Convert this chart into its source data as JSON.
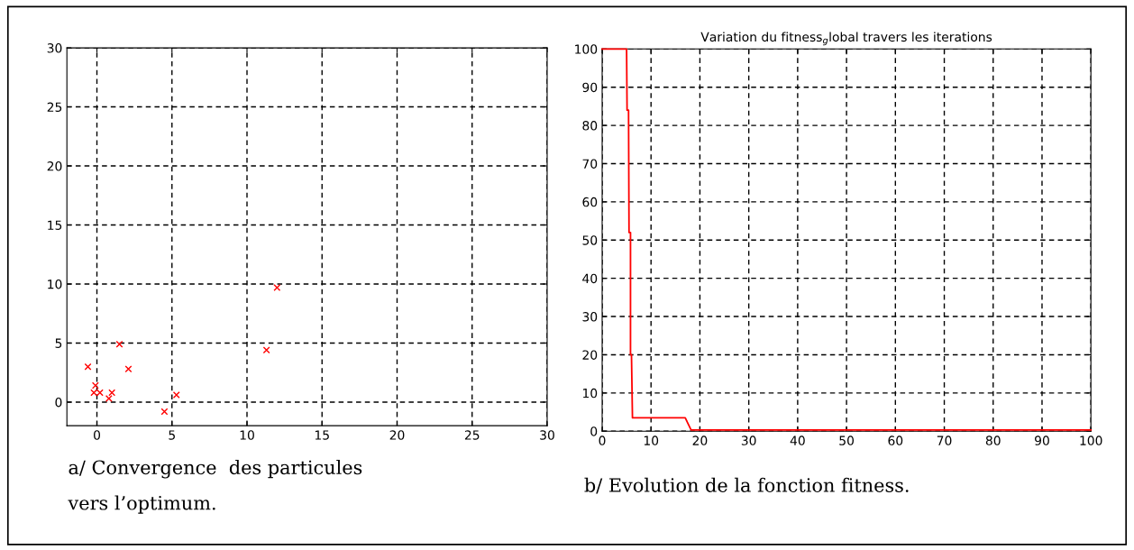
{
  "chart_data": [
    {
      "type": "scatter",
      "marker": "cross",
      "grid": true,
      "xlim": [
        -2,
        30
      ],
      "ylim": [
        -2,
        30
      ],
      "xticks": [
        0,
        5,
        10,
        15,
        20,
        25,
        30
      ],
      "yticks": [
        0,
        5,
        10,
        15,
        20,
        25,
        30
      ],
      "annotations": [
        "a/ Convergence  des particules\nvers l’optimum."
      ],
      "series": [
        {
          "color": "#ff0000",
          "x": [
            -0.6,
            -0.1,
            -0.2,
            0.2,
            0.8,
            1.0,
            1.5,
            2.1,
            4.5,
            5.3,
            11.3,
            12.0
          ],
          "values": [
            3.0,
            1.4,
            0.8,
            0.8,
            0.3,
            0.8,
            4.9,
            2.8,
            -0.8,
            0.6,
            4.4,
            9.7
          ]
        }
      ]
    },
    {
      "type": "line",
      "title": "Variation du fitness$_{g}$lobal travers les iterations",
      "grid": true,
      "line_style": "solid",
      "xlim": [
        0,
        100
      ],
      "ylim": [
        0,
        100
      ],
      "xticks": [
        0,
        10,
        20,
        30,
        40,
        50,
        60,
        70,
        80,
        90,
        100
      ],
      "yticks": [
        0,
        10,
        20,
        30,
        40,
        50,
        60,
        70,
        80,
        90,
        100
      ],
      "annotations": [
        "b/ Evolution de la fonction fitness."
      ],
      "series": [
        {
          "color": "#ff0000",
          "x": [
            0,
            5,
            5.1,
            5.4,
            5.5,
            5.8,
            5.8,
            6.0,
            6.2,
            17.0,
            18.2,
            100
          ],
          "values": [
            100,
            100,
            84,
            84,
            52,
            52,
            20,
            20,
            3.5,
            3.5,
            0.3,
            0.3
          ]
        }
      ]
    }
  ]
}
